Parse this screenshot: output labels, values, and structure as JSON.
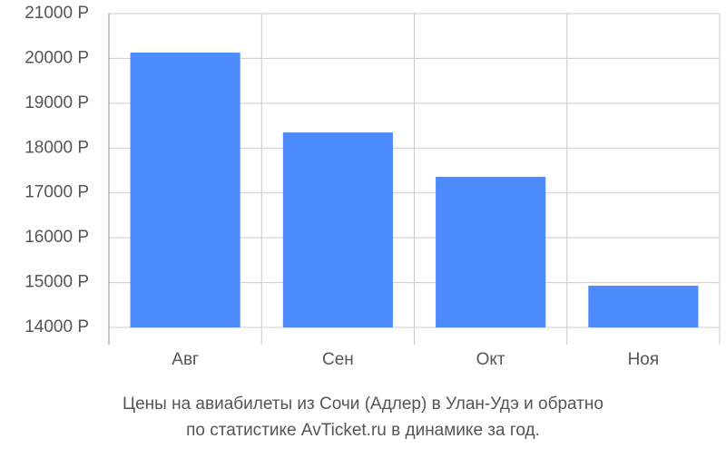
{
  "chart_data": {
    "type": "bar",
    "title": [
      "Цены на авиабилеты из Сочи (Адлер) в Улан-Удэ и обратно",
      "по статистике AvTicket.ru в динамике за год."
    ],
    "categories": [
      "Авг",
      "Сен",
      "Окт",
      "Ноя"
    ],
    "values": [
      20130,
      18350,
      17360,
      14930
    ],
    "color": "#4d8afc",
    "ylim": [
      14000,
      21000
    ],
    "yticks": [
      {
        "value": 14000,
        "label": "14000 Р"
      },
      {
        "value": 15000,
        "label": "15000 Р"
      },
      {
        "value": 16000,
        "label": "16000 Р"
      },
      {
        "value": 17000,
        "label": "17000 Р"
      },
      {
        "value": 18000,
        "label": "18000 Р"
      },
      {
        "value": 19000,
        "label": "19000 Р"
      },
      {
        "value": 20000,
        "label": "20000 Р"
      },
      {
        "value": 21000,
        "label": "21000 Р"
      }
    ],
    "grid": true
  }
}
